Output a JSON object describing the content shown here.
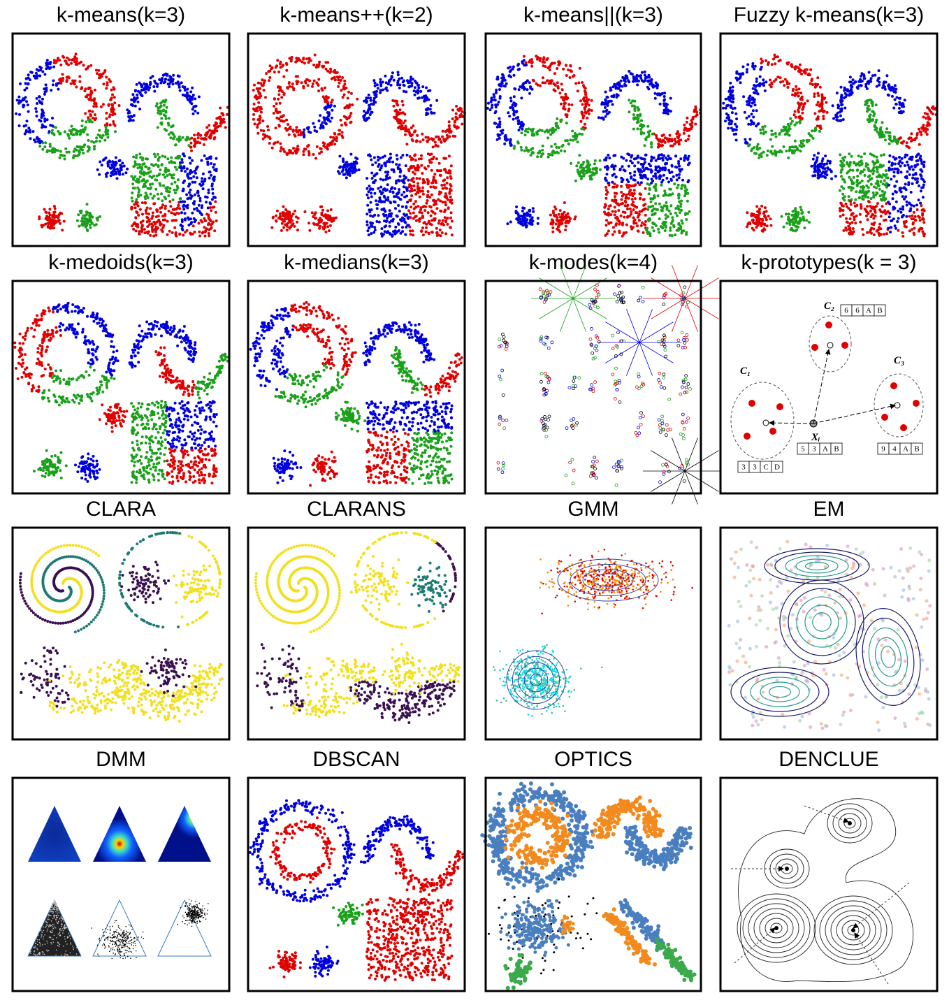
{
  "panels": [
    {
      "title": "k-means(k=3)"
    },
    {
      "title": "k-means++(k=2)"
    },
    {
      "title": "k-means||(k=3)"
    },
    {
      "title": "Fuzzy k-means(k=3)"
    },
    {
      "title": "k-medoids(k=3)"
    },
    {
      "title": "k-medians(k=3)"
    },
    {
      "title": "k-modes(k=4)"
    },
    {
      "title": "k-prototypes(k = 3)"
    },
    {
      "title": "CLARA"
    },
    {
      "title": "CLARANS"
    },
    {
      "title": "GMM"
    },
    {
      "title": "EM"
    },
    {
      "title": "DMM"
    },
    {
      "title": "DBSCAN"
    },
    {
      "title": "OPTICS"
    },
    {
      "title": "DENCLUE"
    }
  ],
  "prototype_diagram": {
    "clusters": [
      "C₁",
      "C₂",
      "C₃"
    ],
    "point": "Xᵢ",
    "tables": [
      [
        "6",
        "6",
        "A",
        "B"
      ],
      [
        "5",
        "3",
        "A",
        "B"
      ],
      [
        "9",
        "4",
        "A",
        "B"
      ],
      [
        "3",
        "3",
        "C",
        "D"
      ]
    ]
  }
}
